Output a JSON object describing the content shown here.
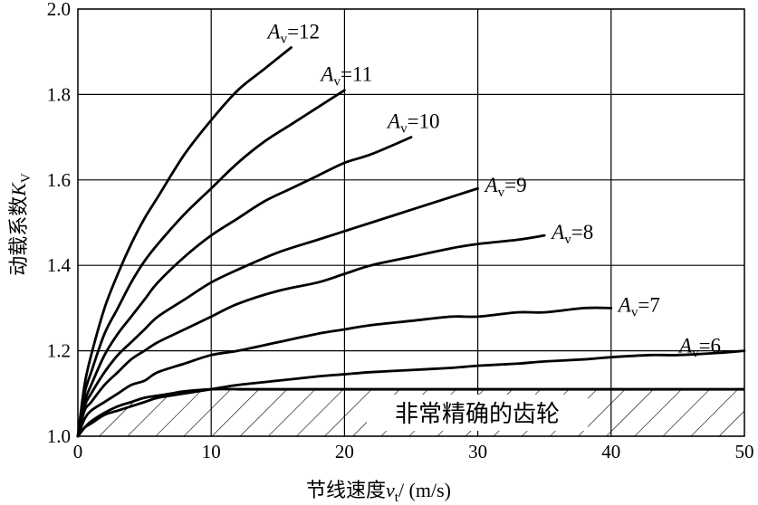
{
  "chart_data": {
    "type": "line",
    "xlabel": "节线速度",
    "xlabel_symbol": "v",
    "xlabel_subscript": "t",
    "xlabel_unit": "/ (m/s)",
    "ylabel": "动载系数",
    "ylabel_symbol": "K",
    "ylabel_subscript": "V",
    "xlim": [
      0,
      50
    ],
    "ylim": [
      1.0,
      2.0
    ],
    "x_ticks": [
      "0",
      "10",
      "20",
      "30",
      "40",
      "50"
    ],
    "y_ticks": [
      "1.0",
      "1.2",
      "1.4",
      "1.6",
      "1.8",
      "2.0"
    ],
    "grid": true,
    "hatched_region_label": "非常精确的齿轮",
    "hatched_region_upper": 1.11,
    "series": [
      {
        "label_symbol": "A",
        "label_subscript": "v",
        "label_value": "=12",
        "x": [
          0,
          0.5,
          1,
          2,
          3,
          4,
          5,
          6,
          8,
          10,
          12,
          14,
          16
        ],
        "y": [
          1.0,
          1.12,
          1.19,
          1.3,
          1.38,
          1.45,
          1.51,
          1.56,
          1.66,
          1.74,
          1.81,
          1.86,
          1.91
        ]
      },
      {
        "label_symbol": "A",
        "label_subscript": "v",
        "label_value": "=11",
        "x": [
          0,
          0.5,
          1,
          2,
          3,
          4,
          5,
          6,
          8,
          10,
          12,
          14,
          16,
          18,
          20
        ],
        "y": [
          1.0,
          1.1,
          1.15,
          1.24,
          1.3,
          1.36,
          1.41,
          1.45,
          1.52,
          1.58,
          1.64,
          1.69,
          1.73,
          1.77,
          1.81
        ]
      },
      {
        "label_symbol": "A",
        "label_subscript": "v",
        "label_value": "=10",
        "x": [
          0,
          0.5,
          1,
          2,
          3,
          4,
          5,
          6,
          8,
          10,
          12,
          14,
          16,
          18,
          20,
          22,
          25
        ],
        "y": [
          1.0,
          1.08,
          1.12,
          1.19,
          1.24,
          1.28,
          1.32,
          1.36,
          1.42,
          1.47,
          1.51,
          1.55,
          1.58,
          1.61,
          1.64,
          1.66,
          1.7
        ]
      },
      {
        "label_symbol": "A",
        "label_subscript": "v",
        "label_value": "=9",
        "x": [
          0,
          0.5,
          1,
          2,
          3,
          4,
          5,
          6,
          8,
          10,
          12,
          15,
          18,
          20,
          22,
          25,
          28,
          30
        ],
        "y": [
          1.0,
          1.07,
          1.1,
          1.15,
          1.19,
          1.22,
          1.25,
          1.28,
          1.32,
          1.36,
          1.39,
          1.43,
          1.46,
          1.48,
          1.5,
          1.53,
          1.56,
          1.58
        ]
      },
      {
        "label_symbol": "A",
        "label_subscript": "v",
        "label_value": "=8",
        "x": [
          0,
          0.5,
          1,
          2,
          3,
          4,
          5,
          6,
          8,
          10,
          12,
          15,
          18,
          20,
          22,
          25,
          28,
          30,
          33,
          35
        ],
        "y": [
          1.0,
          1.06,
          1.08,
          1.12,
          1.15,
          1.18,
          1.2,
          1.22,
          1.25,
          1.28,
          1.31,
          1.34,
          1.36,
          1.38,
          1.4,
          1.42,
          1.44,
          1.45,
          1.46,
          1.47
        ]
      },
      {
        "label_symbol": "A",
        "label_subscript": "v",
        "label_value": "=7",
        "x": [
          0,
          0.5,
          1,
          2,
          3,
          4,
          5,
          6,
          8,
          10,
          12,
          15,
          18,
          20,
          22,
          25,
          28,
          30,
          33,
          35,
          38,
          40
        ],
        "y": [
          1.0,
          1.04,
          1.06,
          1.08,
          1.1,
          1.12,
          1.13,
          1.15,
          1.17,
          1.19,
          1.2,
          1.22,
          1.24,
          1.25,
          1.26,
          1.27,
          1.28,
          1.28,
          1.29,
          1.29,
          1.3,
          1.3
        ]
      },
      {
        "label_symbol": "A",
        "label_subscript": "v",
        "label_value": "=6",
        "x": [
          0,
          0.5,
          1,
          2,
          3,
          4,
          5,
          6,
          8,
          10,
          12,
          15,
          18,
          20,
          22,
          25,
          28,
          30,
          33,
          35,
          38,
          40,
          43,
          45,
          48,
          50
        ],
        "y": [
          1.0,
          1.02,
          1.03,
          1.05,
          1.06,
          1.07,
          1.08,
          1.09,
          1.1,
          1.11,
          1.12,
          1.13,
          1.14,
          1.145,
          1.15,
          1.155,
          1.16,
          1.165,
          1.17,
          1.175,
          1.18,
          1.185,
          1.19,
          1.19,
          1.195,
          1.2
        ]
      },
      {
        "label_symbol": "",
        "label_subscript": "",
        "label_value": "",
        "x": [
          0,
          0.5,
          1,
          2,
          3,
          4,
          5,
          6,
          7,
          8,
          10,
          12
        ],
        "y": [
          1.0,
          1.02,
          1.035,
          1.055,
          1.07,
          1.08,
          1.09,
          1.095,
          1.1,
          1.105,
          1.11,
          1.11
        ]
      }
    ]
  }
}
